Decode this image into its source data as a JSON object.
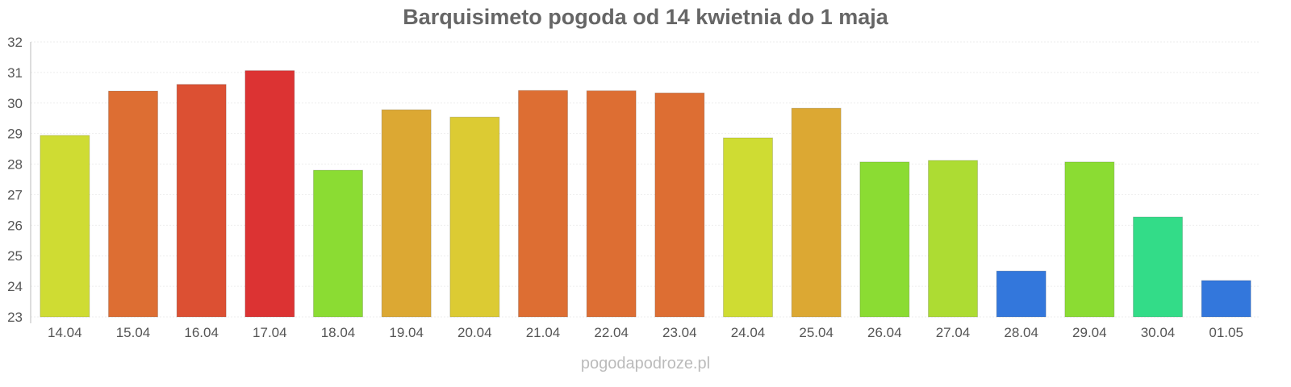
{
  "chart_data": {
    "type": "bar",
    "title": "Barquisimeto pogoda od 14 kwietnia do 1 maja",
    "footer": "pogodapodroze.pl",
    "xlabel": "",
    "ylabel": "",
    "ylim": [
      23,
      32
    ],
    "yticks": [
      23,
      24,
      25,
      26,
      27,
      28,
      29,
      30,
      31,
      32
    ],
    "grid": true,
    "categories": [
      "14.04",
      "15.04",
      "16.04",
      "17.04",
      "18.04",
      "19.04",
      "20.04",
      "21.04",
      "22.04",
      "23.04",
      "24.04",
      "25.04",
      "26.04",
      "27.04",
      "28.04",
      "29.04",
      "30.04",
      "01.05"
    ],
    "values": [
      28.94,
      30.39,
      30.61,
      31.06,
      27.8,
      29.78,
      29.54,
      30.41,
      30.4,
      30.33,
      28.86,
      29.83,
      28.07,
      28.12,
      24.5,
      28.07,
      26.27,
      24.19
    ],
    "colors": [
      "#cfdc33",
      "#dd6e33",
      "#dc5033",
      "#dc3333",
      "#8bdc33",
      "#dca833",
      "#dccb33",
      "#dd6e33",
      "#dd6e33",
      "#dd6e33",
      "#cfdc33",
      "#dca833",
      "#8bdc33",
      "#addc33",
      "#3377dc",
      "#8bdc33",
      "#33dc88",
      "#3377dc"
    ]
  }
}
